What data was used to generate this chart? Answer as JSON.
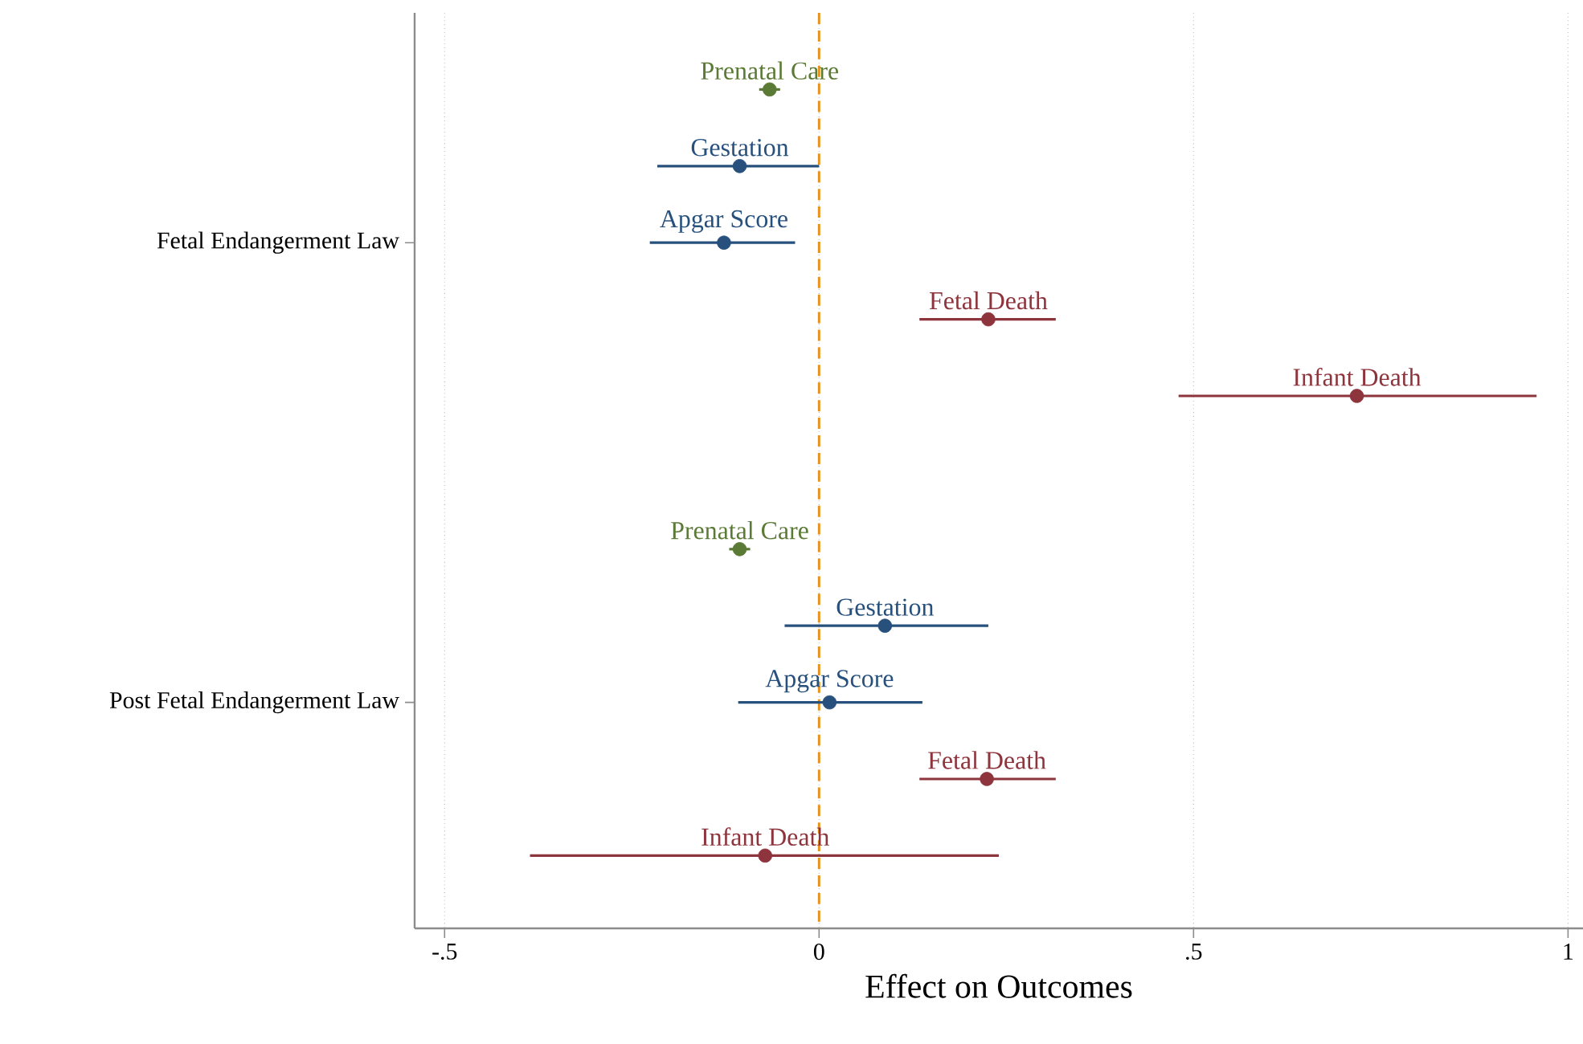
{
  "chart_data": {
    "type": "scatter",
    "orientation": "horizontal",
    "xlabel": "Effect on Outcomes",
    "categories": [
      null,
      null,
      "Fetal Endangerment Law",
      null,
      null,
      null,
      null,
      null,
      "Post Fetal Endangerment Law",
      null,
      null
    ],
    "series": [
      {
        "name": "Prenatal Care",
        "color": "#5b7a36",
        "values": [
          -0.066,
          null,
          null,
          null,
          null,
          null,
          -0.106,
          null,
          null,
          null,
          null
        ],
        "errors": [
          [
            -0.08,
            -0.052
          ],
          null,
          null,
          null,
          null,
          null,
          [
            -0.12,
            -0.092
          ],
          null,
          null,
          null,
          null
        ]
      },
      {
        "name": "Gestation",
        "color": "#27507c",
        "values": [
          null,
          -0.106,
          null,
          null,
          null,
          null,
          null,
          0.088,
          null,
          null,
          null
        ],
        "errors": [
          null,
          [
            -0.216,
            0.0
          ],
          null,
          null,
          null,
          null,
          null,
          [
            -0.046,
            0.226
          ],
          null,
          null,
          null
        ]
      },
      {
        "name": "Apgar Score",
        "color": "#27507c",
        "values": [
          null,
          null,
          -0.127,
          null,
          null,
          null,
          null,
          null,
          0.014,
          null,
          null
        ],
        "errors": [
          null,
          null,
          [
            -0.226,
            -0.032
          ],
          null,
          null,
          null,
          null,
          null,
          [
            -0.108,
            0.138
          ],
          null,
          null
        ]
      },
      {
        "name": "Fetal Death",
        "color": "#8e343d",
        "values": [
          null,
          null,
          null,
          0.226,
          null,
          null,
          null,
          null,
          null,
          0.224,
          null
        ],
        "errors": [
          null,
          null,
          null,
          [
            0.134,
            0.316
          ],
          null,
          null,
          null,
          null,
          null,
          [
            0.134,
            0.316
          ],
          null
        ]
      },
      {
        "name": "Infant Death",
        "color": "#8e343d",
        "values": [
          null,
          null,
          null,
          null,
          0.718,
          null,
          null,
          null,
          null,
          null,
          -0.072
        ],
        "errors": [
          null,
          null,
          null,
          null,
          [
            0.48,
            0.958
          ],
          null,
          null,
          null,
          null,
          null,
          [
            -0.386,
            0.24
          ]
        ]
      }
    ],
    "xlim": [
      -0.54,
      1.02
    ],
    "xticks": [
      {
        "value": -0.5,
        "label": "-.5"
      },
      0,
      {
        "value": 0.5,
        "label": ".5"
      },
      1
    ],
    "grid": "x",
    "marker": "circle",
    "ref_lines": [
      {
        "axis": "x",
        "value": 0,
        "color": "#e8921c",
        "line_style": "dashed"
      }
    ]
  }
}
